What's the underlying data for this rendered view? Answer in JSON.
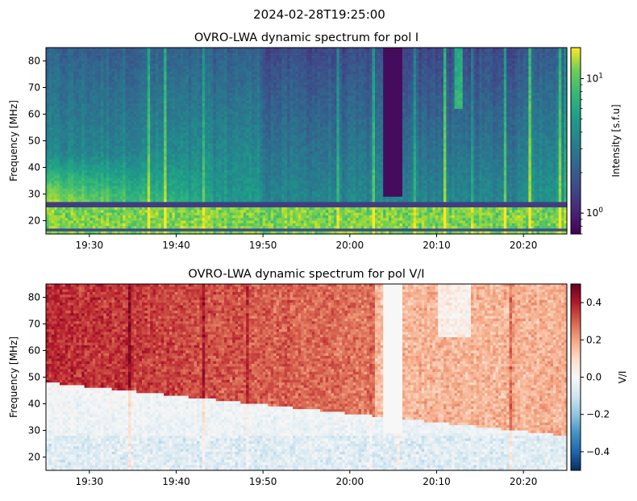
{
  "suptitle": "2024-02-28T19:25:00",
  "chart_data": [
    {
      "type": "heatmap",
      "title": "OVRO-LWA dynamic spectrum for pol I",
      "xlabel": "",
      "ylabel": "Frequency [MHz]",
      "x_range": [
        "19:25",
        "20:25"
      ],
      "xticks": [
        "19:30",
        "19:40",
        "19:50",
        "20:00",
        "20:10",
        "20:20"
      ],
      "ylim": [
        15,
        85
      ],
      "yticks": [
        20,
        30,
        40,
        50,
        60,
        70,
        80
      ],
      "colormap": "viridis",
      "color_scale": "log",
      "colorbar": {
        "label": "Intensity [s.f.u]",
        "range": [
          0.7,
          17
        ],
        "major_ticks": [
          {
            "value": 1,
            "label": "10",
            "exp": "0"
          },
          {
            "value": 10,
            "label": "10",
            "exp": "1"
          }
        ]
      },
      "features": {
        "data_gap_time": [
          "20:04",
          "20:06"
        ],
        "data_gap_freq_above": 29,
        "bright_band_low_freq_mhz": [
          18,
          25
        ],
        "bright_emission_time": [
          "19:25",
          "19:45"
        ],
        "burst_times": [
          "20:12",
          "20:13"
        ],
        "dark_rfi_bands_mhz": [
          25.5,
          27,
          16.5
        ]
      }
    },
    {
      "type": "heatmap",
      "title": "OVRO-LWA dynamic spectrum for pol V/I",
      "xlabel": "",
      "ylabel": "Frequency [MHz]",
      "x_range": [
        "19:25",
        "20:25"
      ],
      "xticks": [
        "19:30",
        "19:40",
        "19:50",
        "20:00",
        "20:10",
        "20:20"
      ],
      "ylim": [
        15,
        85
      ],
      "yticks": [
        20,
        30,
        40,
        50,
        60,
        70,
        80
      ],
      "colormap": "RdBu_r",
      "color_scale": "linear",
      "colorbar": {
        "label": "V/I",
        "range": [
          -0.5,
          0.5
        ],
        "ticks": [
          -0.4,
          -0.2,
          0.0,
          0.2,
          0.4
        ],
        "tick_labels": [
          "−0.4",
          "−0.2",
          "0.0",
          "0.2",
          "0.4"
        ]
      },
      "features": {
        "data_gap_time": [
          "20:04",
          "20:06"
        ],
        "strong_positive_region_time": [
          "19:25",
          "20:03"
        ],
        "weak_negative_band_mhz": [
          17,
          45
        ]
      }
    }
  ]
}
